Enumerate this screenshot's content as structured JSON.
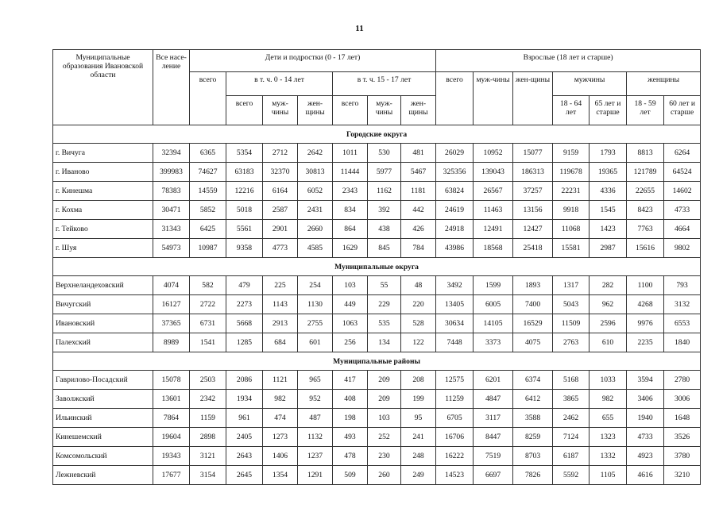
{
  "page_number": "11",
  "header": {
    "name": "Муниципальные образования Ивановской области",
    "total": "Все насе-ление",
    "children": "Дети и подростки (0 - 17 лет)",
    "adults": "Взрослые (18 лет и старше)",
    "all": "всего",
    "age_0_14": "в т. ч. 0 - 14 лет",
    "age_15_17": "в т. ч. 15 - 17 лет",
    "men": "муж-чины",
    "women": "жен-щины",
    "men_group": "мужчины",
    "women_group": "женщины",
    "m_18_64": "18 - 64 лет",
    "m_65": "65 лет и старше",
    "w_18_59": "18 - 59 лет",
    "w_60": "60 лет и старше"
  },
  "sections": [
    {
      "title": "Городские округа",
      "rows": [
        [
          "г. Вичуга",
          "32394",
          "6365",
          "5354",
          "2712",
          "2642",
          "1011",
          "530",
          "481",
          "26029",
          "10952",
          "15077",
          "9159",
          "1793",
          "8813",
          "6264"
        ],
        [
          "г. Иваново",
          "399983",
          "74627",
          "63183",
          "32370",
          "30813",
          "11444",
          "5977",
          "5467",
          "325356",
          "139043",
          "186313",
          "119678",
          "19365",
          "121789",
          "64524"
        ],
        [
          "г. Кинешма",
          "78383",
          "14559",
          "12216",
          "6164",
          "6052",
          "2343",
          "1162",
          "1181",
          "63824",
          "26567",
          "37257",
          "22231",
          "4336",
          "22655",
          "14602"
        ],
        [
          "г. Кохма",
          "30471",
          "5852",
          "5018",
          "2587",
          "2431",
          "834",
          "392",
          "442",
          "24619",
          "11463",
          "13156",
          "9918",
          "1545",
          "8423",
          "4733"
        ],
        [
          "г. Тейково",
          "31343",
          "6425",
          "5561",
          "2901",
          "2660",
          "864",
          "438",
          "426",
          "24918",
          "12491",
          "12427",
          "11068",
          "1423",
          "7763",
          "4664"
        ],
        [
          "г. Шуя",
          "54973",
          "10987",
          "9358",
          "4773",
          "4585",
          "1629",
          "845",
          "784",
          "43986",
          "18568",
          "25418",
          "15581",
          "2987",
          "15616",
          "9802"
        ]
      ]
    },
    {
      "title": "Муниципальные округа",
      "rows": [
        [
          "Верхнеландеховский",
          "4074",
          "582",
          "479",
          "225",
          "254",
          "103",
          "55",
          "48",
          "3492",
          "1599",
          "1893",
          "1317",
          "282",
          "1100",
          "793"
        ],
        [
          "Вичугский",
          "16127",
          "2722",
          "2273",
          "1143",
          "1130",
          "449",
          "229",
          "220",
          "13405",
          "6005",
          "7400",
          "5043",
          "962",
          "4268",
          "3132"
        ],
        [
          "Ивановский",
          "37365",
          "6731",
          "5668",
          "2913",
          "2755",
          "1063",
          "535",
          "528",
          "30634",
          "14105",
          "16529",
          "11509",
          "2596",
          "9976",
          "6553"
        ],
        [
          "Палехский",
          "8989",
          "1541",
          "1285",
          "684",
          "601",
          "256",
          "134",
          "122",
          "7448",
          "3373",
          "4075",
          "2763",
          "610",
          "2235",
          "1840"
        ]
      ]
    },
    {
      "title": "Муниципальные районы",
      "rows": [
        [
          "Гаврилово-Посадский",
          "15078",
          "2503",
          "2086",
          "1121",
          "965",
          "417",
          "209",
          "208",
          "12575",
          "6201",
          "6374",
          "5168",
          "1033",
          "3594",
          "2780"
        ],
        [
          "Заволжский",
          "13601",
          "2342",
          "1934",
          "982",
          "952",
          "408",
          "209",
          "199",
          "11259",
          "4847",
          "6412",
          "3865",
          "982",
          "3406",
          "3006"
        ],
        [
          "Ильинский",
          "7864",
          "1159",
          "961",
          "474",
          "487",
          "198",
          "103",
          "95",
          "6705",
          "3117",
          "3588",
          "2462",
          "655",
          "1940",
          "1648"
        ],
        [
          "Кинешемский",
          "19604",
          "2898",
          "2405",
          "1273",
          "1132",
          "493",
          "252",
          "241",
          "16706",
          "8447",
          "8259",
          "7124",
          "1323",
          "4733",
          "3526"
        ],
        [
          "Комсомольский",
          "19343",
          "3121",
          "2643",
          "1406",
          "1237",
          "478",
          "230",
          "248",
          "16222",
          "7519",
          "8703",
          "6187",
          "1332",
          "4923",
          "3780"
        ],
        [
          "Лежневский",
          "17677",
          "3154",
          "2645",
          "1354",
          "1291",
          "509",
          "260",
          "249",
          "14523",
          "6697",
          "7826",
          "5592",
          "1105",
          "4616",
          "3210"
        ]
      ]
    }
  ]
}
